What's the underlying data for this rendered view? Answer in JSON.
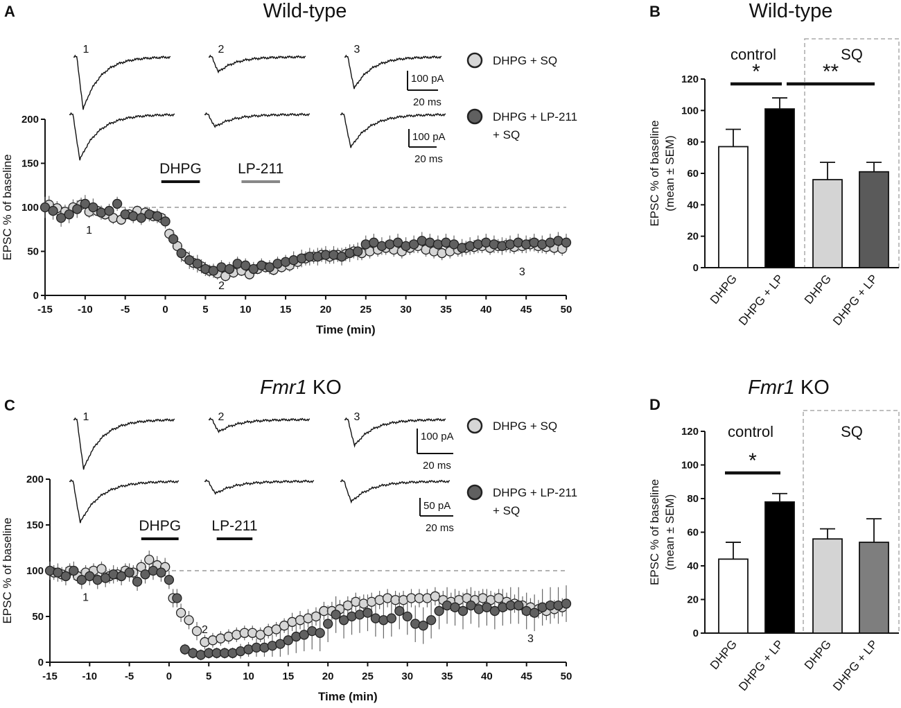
{
  "chart_data": [
    {
      "panel": "A",
      "type": "scatter",
      "title": "Wild-type",
      "xlabel": "Time (min)",
      "ylabel": "EPSC % of baseline",
      "xlim": [
        -15,
        50
      ],
      "ylim": [
        0,
        200
      ],
      "xticks": [
        "-15",
        "-10",
        "-5",
        "0",
        "5",
        "10",
        "15",
        "20",
        "25",
        "30",
        "35",
        "40",
        "45",
        "50"
      ],
      "yticks": [
        "0",
        "50",
        "100",
        "150",
        "200"
      ],
      "baseline": 100,
      "drug_bars": [
        {
          "label": "DHPG",
          "start": -0.5,
          "end": 4.3,
          "color": "#111111"
        },
        {
          "label": "LP-211",
          "start": 9.5,
          "end": 14.3,
          "color": "#888888"
        }
      ],
      "timepoint_labels": [
        {
          "label": "1",
          "x": -9.5,
          "y": 70
        },
        {
          "label": "2",
          "x": 7,
          "y": 7
        },
        {
          "label": "3",
          "x": 44.5,
          "y": 23
        }
      ],
      "legend": [
        {
          "label": "DHPG + SQ",
          "color": "#d6d6d6"
        },
        {
          "label": "DHPG + LP-211\n+ SQ",
          "color": "#606060"
        }
      ],
      "traces_labels": [
        "1",
        "2",
        "3"
      ],
      "scalebars": [
        {
          "amp": "100 pA",
          "time": "20 ms"
        },
        {
          "amp": "100 pA",
          "time": "20 ms"
        }
      ],
      "series": [
        {
          "name": "DHPG + SQ",
          "color": "#d6d6d6",
          "x": [
            -14.5,
            -13.5,
            -12.5,
            -11.5,
            -10.5,
            -9.5,
            -8.5,
            -7.5,
            -6.5,
            -5.5,
            -4.5,
            -3.5,
            -2.5,
            -1.5,
            -0.5,
            0.5,
            1.5,
            2.5,
            3.5,
            4.5,
            5.5,
            6.5,
            7.5,
            8.5,
            9.5,
            10.5,
            11.5,
            12.5,
            13.5,
            14.5,
            15.5,
            16.5,
            17.5,
            18.5,
            19.5,
            20.5,
            21.5,
            22.5,
            23.5,
            24.5,
            25.5,
            26.5,
            27.5,
            28.5,
            29.5,
            30.5,
            31.5,
            32.5,
            33.5,
            34.5,
            35.5,
            36.5,
            37.5,
            38.5,
            39.5,
            40.5,
            41.5,
            42.5,
            43.5,
            44.5,
            45.5,
            46.5,
            47.5,
            48.5,
            49.5
          ],
          "y": [
            103,
            99,
            95,
            100,
            103,
            95,
            96,
            92,
            88,
            86,
            92,
            96,
            94,
            90,
            88,
            70,
            56,
            44,
            37,
            33,
            28,
            25,
            22,
            26,
            28,
            24,
            30,
            32,
            29,
            32,
            34,
            38,
            42,
            44,
            46,
            44,
            46,
            47,
            50,
            48,
            50,
            52,
            54,
            52,
            50,
            54,
            56,
            52,
            50,
            48,
            50,
            52,
            54,
            55,
            56,
            54,
            56,
            57,
            55,
            56,
            58,
            56,
            55,
            54,
            53
          ],
          "err": [
            10,
            8,
            8,
            9,
            8,
            7,
            6,
            6,
            7,
            6,
            6,
            6,
            6,
            6,
            6,
            6,
            8,
            8,
            8,
            8,
            7,
            7,
            6,
            6,
            6,
            6,
            6,
            6,
            6,
            6,
            7,
            8,
            8,
            8,
            8,
            8,
            8,
            8,
            8,
            8,
            8,
            8,
            8,
            8,
            8,
            8,
            8,
            8,
            8,
            8,
            8,
            8,
            8,
            8,
            8,
            8,
            8,
            8,
            8,
            8,
            8,
            8,
            8,
            8,
            8
          ]
        },
        {
          "name": "DHPG + LP-211 + SQ",
          "color": "#606060",
          "x": [
            -15,
            -14,
            -13,
            -12,
            -11,
            -10,
            -9,
            -8,
            -7,
            -6,
            -5,
            -4,
            -3,
            -2,
            -1,
            0,
            1,
            2,
            3,
            4,
            5,
            6,
            7,
            8,
            9,
            10,
            11,
            12,
            13,
            14,
            15,
            16,
            17,
            18,
            19,
            20,
            21,
            22,
            23,
            24,
            25,
            26,
            27,
            28,
            29,
            30,
            31,
            32,
            33,
            34,
            35,
            36,
            37,
            38,
            39,
            40,
            41,
            42,
            43,
            44,
            45,
            46,
            47,
            48,
            49,
            50
          ],
          "y": [
            100,
            96,
            88,
            92,
            98,
            104,
            100,
            94,
            96,
            104,
            92,
            90,
            88,
            92,
            90,
            84,
            64,
            48,
            40,
            36,
            30,
            28,
            32,
            30,
            36,
            34,
            30,
            34,
            32,
            36,
            38,
            40,
            42,
            44,
            44,
            46,
            46,
            44,
            48,
            50,
            58,
            60,
            56,
            58,
            60,
            56,
            58,
            62,
            60,
            58,
            60,
            58,
            54,
            56,
            58,
            60,
            58,
            56,
            58,
            60,
            58,
            60,
            58,
            60,
            62,
            60
          ],
          "err": [
            12,
            10,
            10,
            10,
            10,
            10,
            10,
            8,
            8,
            8,
            8,
            8,
            8,
            8,
            8,
            8,
            10,
            10,
            10,
            10,
            8,
            8,
            8,
            8,
            8,
            8,
            8,
            8,
            8,
            8,
            8,
            10,
            10,
            10,
            10,
            10,
            10,
            10,
            10,
            10,
            10,
            10,
            10,
            10,
            10,
            10,
            10,
            10,
            10,
            10,
            10,
            10,
            10,
            10,
            10,
            10,
            10,
            10,
            10,
            10,
            10,
            10,
            10,
            10,
            10,
            10
          ]
        }
      ]
    },
    {
      "panel": "B",
      "type": "bar",
      "title": "Wild-type",
      "ylabel": "EPSC % of baseline\n(mean ± SEM)",
      "ylim": [
        0,
        120
      ],
      "yticks": [
        "0",
        "20",
        "40",
        "60",
        "80",
        "100",
        "120"
      ],
      "categories": [
        "DHPG",
        "DHPG + LP",
        "DHPG",
        "DHPG + LP"
      ],
      "values": [
        77,
        101,
        56,
        61
      ],
      "errors": [
        11,
        7,
        11,
        6
      ],
      "colors": [
        "#ffffff",
        "#000000",
        "#d4d4d4",
        "#5a5a5a"
      ],
      "groups": [
        {
          "label": "control",
          "boxed": false
        },
        {
          "label": "SQ",
          "boxed": true
        }
      ],
      "significance": [
        {
          "label": "*",
          "from": 0,
          "to": 1
        },
        {
          "label": "**",
          "from": 1,
          "to": 3
        }
      ]
    },
    {
      "panel": "C",
      "type": "scatter",
      "title": "Fmr1 KO",
      "title_italic_part": "Fmr1",
      "title_rest": " KO",
      "xlabel": "Time (min)",
      "ylabel": "EPSC % of baseline",
      "xlim": [
        -15,
        50
      ],
      "ylim": [
        0,
        200
      ],
      "xticks": [
        "-15",
        "-10",
        "-5",
        "0",
        "5",
        "10",
        "15",
        "20",
        "25",
        "30",
        "35",
        "40",
        "45",
        "50"
      ],
      "yticks": [
        "0",
        "50",
        "100",
        "150",
        "200"
      ],
      "baseline": 100,
      "drug_bars": [
        {
          "label": "DHPG",
          "start": -3.5,
          "end": 1.2,
          "color": "#111111"
        },
        {
          "label": "LP-211",
          "start": 6,
          "end": 10.5,
          "color": "#111111"
        }
      ],
      "timepoint_labels": [
        {
          "label": "1",
          "x": -10.5,
          "y": 67
        },
        {
          "label": "2",
          "x": 4.5,
          "y": 32
        },
        {
          "label": "3",
          "x": 45.5,
          "y": 22
        }
      ],
      "legend": [
        {
          "label": "DHPG + SQ",
          "color": "#d6d6d6"
        },
        {
          "label": "DHPG + LP-211\n+ SQ",
          "color": "#606060"
        }
      ],
      "traces_labels": [
        "1",
        "2",
        "3"
      ],
      "scalebars": [
        {
          "amp": "100 pA",
          "time": "20 ms"
        },
        {
          "amp": "50 pA",
          "time": "20 ms"
        }
      ],
      "series": [
        {
          "name": "DHPG + SQ",
          "color": "#d6d6d6",
          "x": [
            -14.5,
            -13.5,
            -12.5,
            -11.5,
            -10.5,
            -9.5,
            -8.5,
            -7.5,
            -6.5,
            -5.5,
            -4.5,
            -3.5,
            -2.5,
            -1.5,
            -0.5,
            0.5,
            1.5,
            2.5,
            3.5,
            4.5,
            5.5,
            6.5,
            7.5,
            8.5,
            9.5,
            10.5,
            11.5,
            12.5,
            13.5,
            14.5,
            15.5,
            16.5,
            17.5,
            18.5,
            19.5,
            20.5,
            21.5,
            22.5,
            23.5,
            24.5,
            25.5,
            26.5,
            27.5,
            28.5,
            29.5,
            30.5,
            31.5,
            32.5,
            33.5,
            34.5,
            35.5,
            36.5,
            37.5,
            38.5,
            39.5,
            40.5,
            41.5,
            42.5,
            43.5,
            44.5,
            45.5,
            46.5,
            47.5,
            48.5,
            49.5
          ],
          "y": [
            98,
            96,
            100,
            94,
            98,
            100,
            102,
            94,
            96,
            100,
            98,
            104,
            112,
            106,
            104,
            70,
            54,
            46,
            34,
            22,
            24,
            26,
            28,
            30,
            32,
            32,
            30,
            34,
            36,
            40,
            44,
            46,
            48,
            50,
            56,
            56,
            58,
            62,
            66,
            64,
            66,
            68,
            70,
            68,
            68,
            70,
            70,
            70,
            72,
            68,
            66,
            68,
            70,
            68,
            70,
            68,
            70,
            66,
            64,
            62,
            60,
            58,
            56,
            58,
            60
          ],
          "err": [
            8,
            8,
            8,
            8,
            8,
            8,
            8,
            8,
            8,
            8,
            8,
            8,
            10,
            10,
            10,
            10,
            10,
            10,
            10,
            8,
            8,
            8,
            8,
            8,
            8,
            8,
            8,
            8,
            8,
            8,
            10,
            10,
            10,
            10,
            10,
            10,
            10,
            10,
            10,
            10,
            10,
            10,
            10,
            10,
            10,
            10,
            10,
            10,
            10,
            10,
            10,
            10,
            10,
            10,
            10,
            10,
            10,
            10,
            10,
            10,
            10,
            10,
            10,
            10,
            10
          ]
        },
        {
          "name": "DHPG + LP-211 + SQ",
          "color": "#606060",
          "x": [
            -15,
            -14,
            -13,
            -12,
            -11,
            -10,
            -9,
            -8,
            -7,
            -6,
            -5,
            -4,
            -3,
            -2,
            -1,
            0,
            1,
            2,
            3,
            4,
            5,
            6,
            7,
            8,
            9,
            10,
            11,
            12,
            13,
            14,
            15,
            16,
            17,
            18,
            19,
            20,
            21,
            22,
            23,
            24,
            25,
            26,
            27,
            28,
            29,
            30,
            31,
            32,
            33,
            34,
            35,
            36,
            37,
            38,
            39,
            40,
            41,
            42,
            43,
            44,
            45,
            46,
            47,
            48,
            49,
            50
          ],
          "y": [
            100,
            98,
            94,
            100,
            90,
            94,
            90,
            92,
            96,
            94,
            98,
            88,
            96,
            100,
            98,
            90,
            70,
            14,
            10,
            8,
            10,
            10,
            10,
            10,
            12,
            14,
            16,
            16,
            18,
            20,
            24,
            28,
            30,
            34,
            32,
            42,
            52,
            46,
            50,
            52,
            54,
            48,
            46,
            48,
            56,
            50,
            42,
            40,
            46,
            56,
            62,
            60,
            56,
            62,
            58,
            60,
            56,
            60,
            62,
            62,
            56,
            54,
            60,
            62,
            62,
            64
          ],
          "err": [
            10,
            10,
            10,
            10,
            10,
            10,
            10,
            10,
            10,
            10,
            10,
            10,
            10,
            10,
            10,
            10,
            10,
            6,
            6,
            6,
            6,
            6,
            6,
            6,
            8,
            8,
            10,
            10,
            12,
            14,
            16,
            18,
            18,
            20,
            20,
            20,
            20,
            20,
            20,
            20,
            20,
            20,
            20,
            20,
            20,
            20,
            20,
            20,
            20,
            20,
            20,
            20,
            20,
            20,
            20,
            20,
            20,
            20,
            20,
            20,
            20,
            20,
            20,
            20,
            20,
            20
          ]
        }
      ]
    },
    {
      "panel": "D",
      "type": "bar",
      "title": "Fmr1 KO",
      "title_italic_part": "Fmr1",
      "title_rest": " KO",
      "ylabel": "EPSC % of baseline\n(mean ± SEM)",
      "ylim": [
        0,
        120
      ],
      "yticks": [
        "0",
        "20",
        "40",
        "60",
        "80",
        "100",
        "120"
      ],
      "categories": [
        "DHPG",
        "DHPG + LP",
        "DHPG",
        "DHPG + LP"
      ],
      "values": [
        44,
        78,
        56,
        54
      ],
      "errors": [
        10,
        5,
        6,
        14
      ],
      "colors": [
        "#ffffff",
        "#000000",
        "#d4d4d4",
        "#7e7e7e"
      ],
      "groups": [
        {
          "label": "control",
          "boxed": false
        },
        {
          "label": "SQ",
          "boxed": true
        }
      ],
      "significance": [
        {
          "label": "*",
          "from": 0,
          "to": 1
        }
      ]
    }
  ]
}
